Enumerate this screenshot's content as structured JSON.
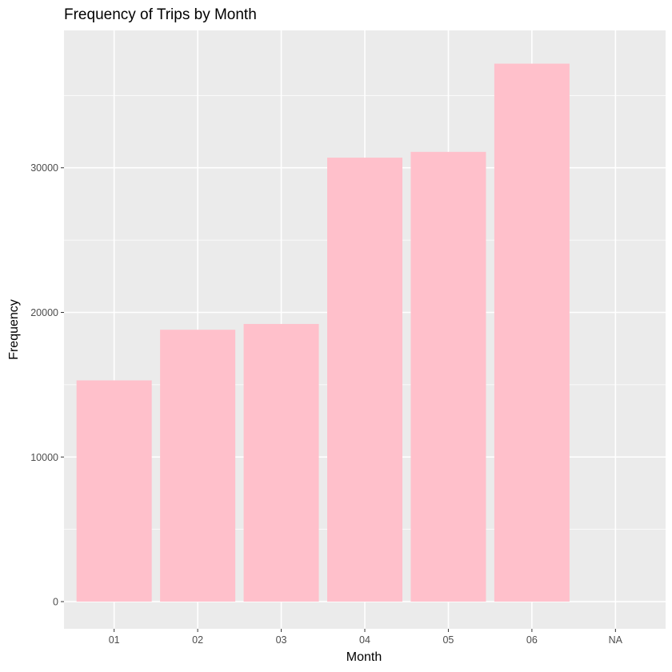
{
  "chart_data": {
    "type": "bar",
    "title": "Frequency of Trips by Month",
    "xlabel": "Month",
    "ylabel": "Frequency",
    "categories": [
      "01",
      "02",
      "03",
      "04",
      "05",
      "06",
      "NA"
    ],
    "values": [
      15300,
      18800,
      19200,
      30700,
      31100,
      37200,
      null
    ],
    "ylim": [
      -1880,
      39500
    ],
    "yticks": [
      0,
      10000,
      20000,
      30000
    ],
    "ytick_labels": [
      "0",
      "10000",
      "20000",
      "30000"
    ],
    "bar_color": "#ffc0cb",
    "panel_background": "#ebebeb",
    "grid_color": "#ffffff",
    "grid": true,
    "legend": "none"
  }
}
